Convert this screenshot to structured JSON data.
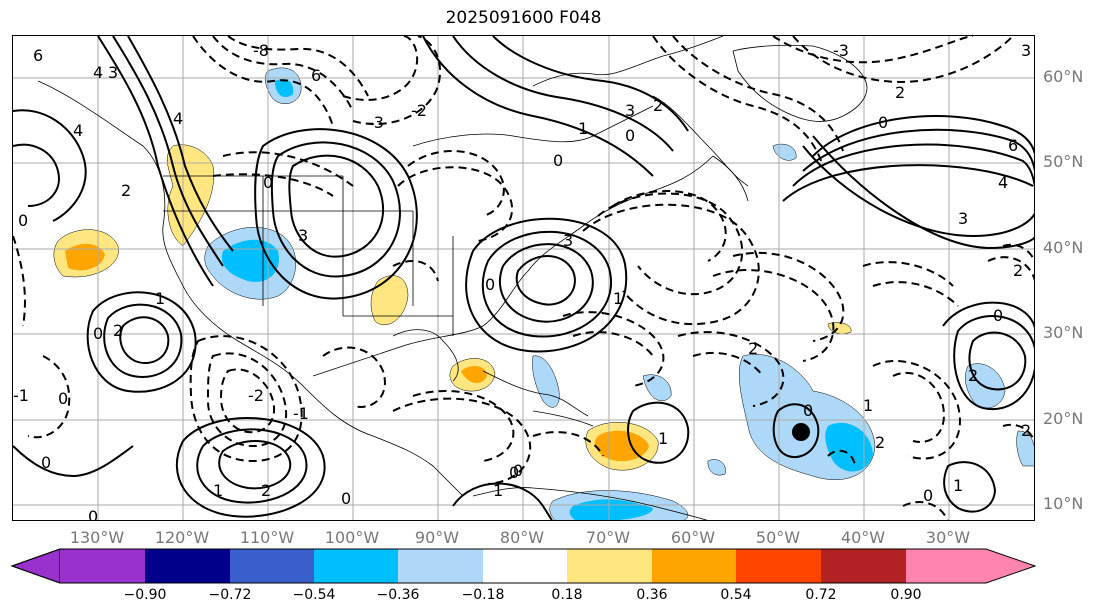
{
  "title": "2025091600 F048",
  "map": {
    "lon_labels": [
      "130°W",
      "120°W",
      "110°W",
      "100°W",
      "90°W",
      "80°W",
      "70°W",
      "60°W",
      "50°W",
      "40°W",
      "30°W"
    ],
    "lat_labels": [
      "60°N",
      "50°N",
      "40°N",
      "30°N",
      "20°N",
      "10°N"
    ],
    "contour_labels": [
      "6",
      "4",
      "3",
      "2",
      "1",
      "0",
      "-1",
      "-2",
      "-3",
      "-4",
      "-8"
    ],
    "marker": {
      "name": "circle-marker",
      "lon": -47.5,
      "lat": 18.3
    }
  },
  "colorbar": {
    "tick_labels": [
      "−0.90",
      "−0.72",
      "−0.54",
      "−0.36",
      "−0.18",
      "0.18",
      "0.36",
      "0.54",
      "0.72",
      "0.90"
    ],
    "colors": [
      "#9932cc",
      "#00008b",
      "#3a5fcd",
      "#00bfff",
      "#add8f7",
      "#ffffff",
      "#ffe680",
      "#ffa500",
      "#ff4500",
      "#b22222",
      "#ff85b0"
    ]
  }
}
